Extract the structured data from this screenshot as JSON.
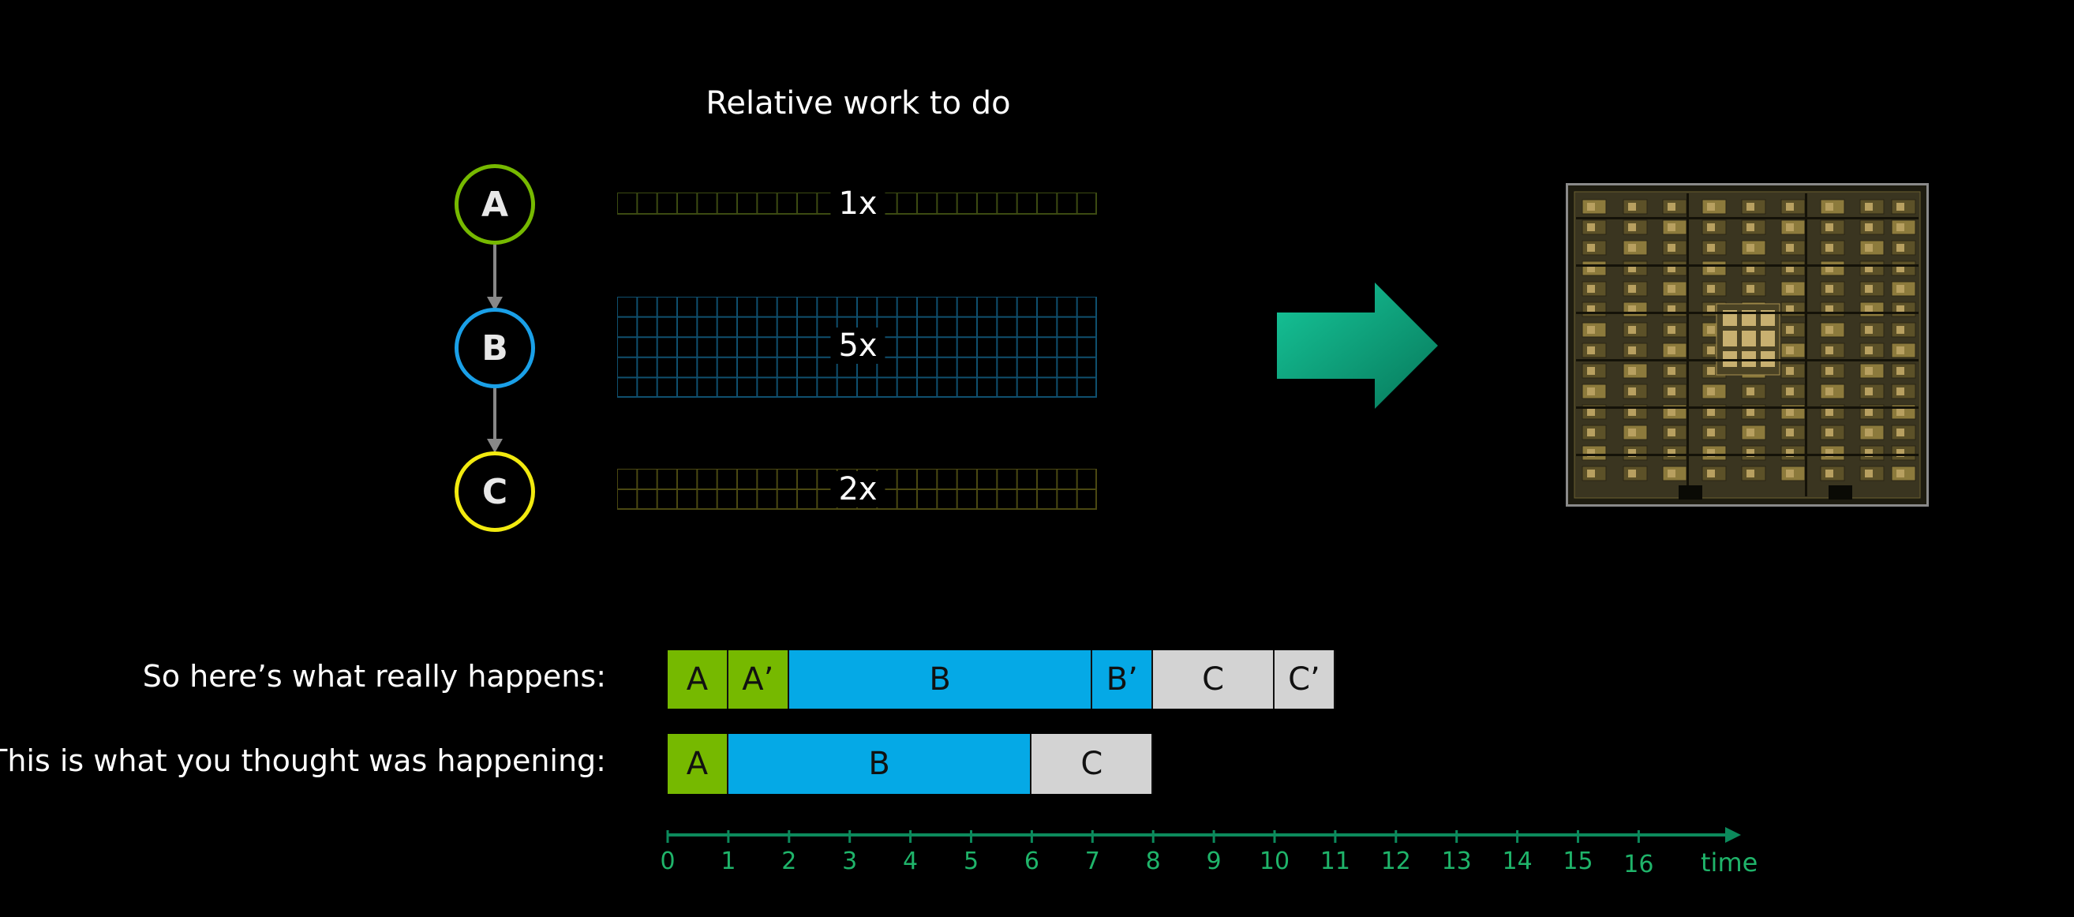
{
  "heading": "Relative work to do",
  "nodes": [
    {
      "id": "A",
      "color": "#76b900"
    },
    {
      "id": "B",
      "color": "#1aa0e8"
    },
    {
      "id": "C",
      "color": "#f2ea0f"
    }
  ],
  "work_bars": [
    {
      "label": "1x",
      "rows": 1,
      "color": "#3c4a12"
    },
    {
      "label": "5x",
      "rows": 5,
      "color": "#0f4f6e"
    },
    {
      "label": "2x",
      "rows": 2,
      "color": "#4a4812"
    }
  ],
  "arrow_color": "#0a8f6b",
  "timelines": [
    {
      "label": "So here’s what really happens:",
      "segments": [
        {
          "text": "A",
          "start": 0,
          "end": 1,
          "color": "#76b900"
        },
        {
          "text": "A’",
          "start": 1,
          "end": 2,
          "color": "#76b900"
        },
        {
          "text": "B",
          "start": 2,
          "end": 7,
          "color": "#05a9e6"
        },
        {
          "text": "B’",
          "start": 7,
          "end": 8,
          "color": "#05a9e6"
        },
        {
          "text": "C",
          "start": 8,
          "end": 10,
          "color": "#d3d3d3"
        },
        {
          "text": "C’",
          "start": 10,
          "end": 11,
          "color": "#d3d3d3"
        }
      ]
    },
    {
      "label": "This is what you thought was happening:",
      "segments": [
        {
          "text": "A",
          "start": 0,
          "end": 1,
          "color": "#76b900"
        },
        {
          "text": "B",
          "start": 1,
          "end": 6,
          "color": "#05a9e6"
        },
        {
          "text": "C",
          "start": 6,
          "end": 8,
          "color": "#d3d3d3"
        }
      ]
    }
  ],
  "axis": {
    "ticks": [
      "0",
      "1",
      "2",
      "3",
      "4",
      "5",
      "6",
      "7",
      "8",
      "9",
      "10",
      "11",
      "12",
      "13",
      "14",
      "15",
      "16"
    ],
    "label": "time",
    "color": "#1fb46a"
  }
}
